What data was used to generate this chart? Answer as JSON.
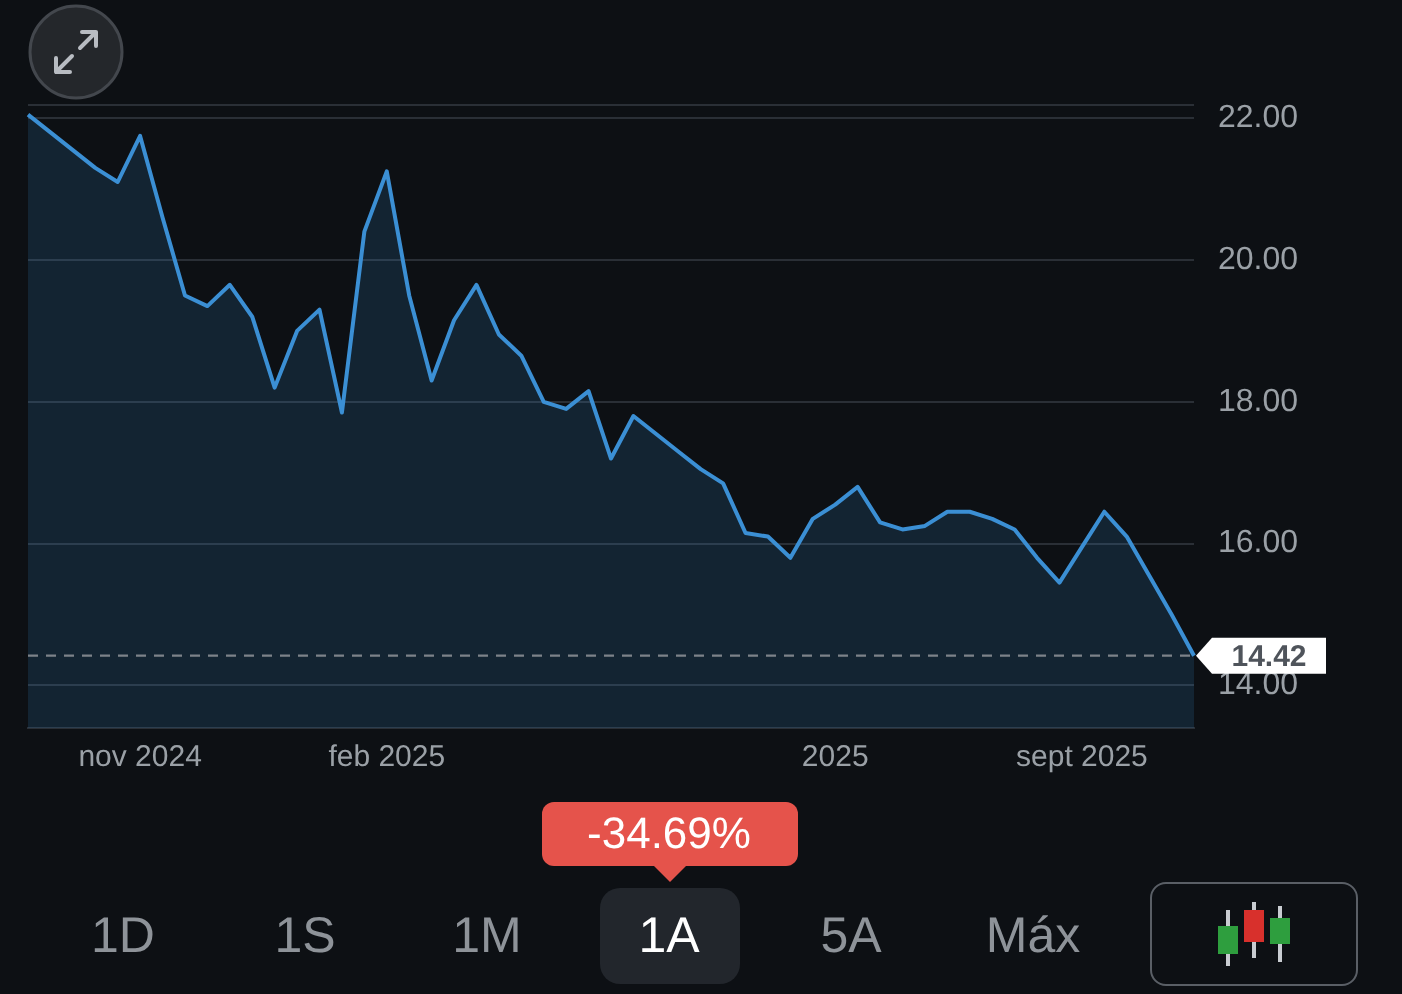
{
  "chart_data": {
    "type": "area",
    "categories": [
      null,
      null,
      null,
      null,
      null,
      "nov 2024",
      null,
      null,
      null,
      null,
      null,
      null,
      null,
      null,
      null,
      null,
      "feb 2025",
      null,
      null,
      null,
      null,
      null,
      null,
      null,
      null,
      null,
      null,
      null,
      null,
      null,
      null,
      null,
      null,
      null,
      null,
      null,
      "2025",
      null,
      null,
      null,
      null,
      null,
      null,
      null,
      null,
      null,
      null,
      "sept 2025",
      null,
      null,
      null,
      null,
      null
    ],
    "values": [
      22.05,
      21.8,
      21.55,
      21.3,
      21.1,
      21.75,
      20.6,
      19.5,
      19.35,
      19.65,
      19.2,
      18.2,
      19.0,
      19.3,
      17.85,
      20.4,
      21.25,
      19.5,
      18.3,
      19.15,
      19.65,
      18.95,
      18.65,
      18.0,
      17.9,
      18.15,
      17.2,
      17.8,
      17.55,
      17.3,
      17.05,
      16.85,
      16.15,
      16.1,
      15.8,
      16.35,
      16.55,
      16.8,
      16.3,
      16.2,
      16.25,
      16.45,
      16.45,
      16.35,
      16.2,
      15.8,
      15.45,
      15.95,
      16.45,
      16.1,
      15.55,
      15.0,
      14.42
    ],
    "color": "#3b8fd4",
    "ylim": [
      13.4,
      22.2
    ],
    "yticks": [
      {
        "value": 14,
        "label": "14.00"
      },
      {
        "value": 16,
        "label": "16.00"
      },
      {
        "value": 18,
        "label": "18.00"
      },
      {
        "value": 20,
        "label": "20.00"
      },
      {
        "value": 22,
        "label": "22.00"
      }
    ],
    "grid": "y",
    "ref_lines": [
      {
        "axis": "y",
        "value": 14.42,
        "label": "14.42",
        "line_style": "dashed",
        "color": "#7d8289"
      }
    ],
    "annotations": [
      "-34.69%",
      "1D",
      "1S",
      "1M",
      "1A",
      "5A",
      "Máx"
    ]
  }
}
